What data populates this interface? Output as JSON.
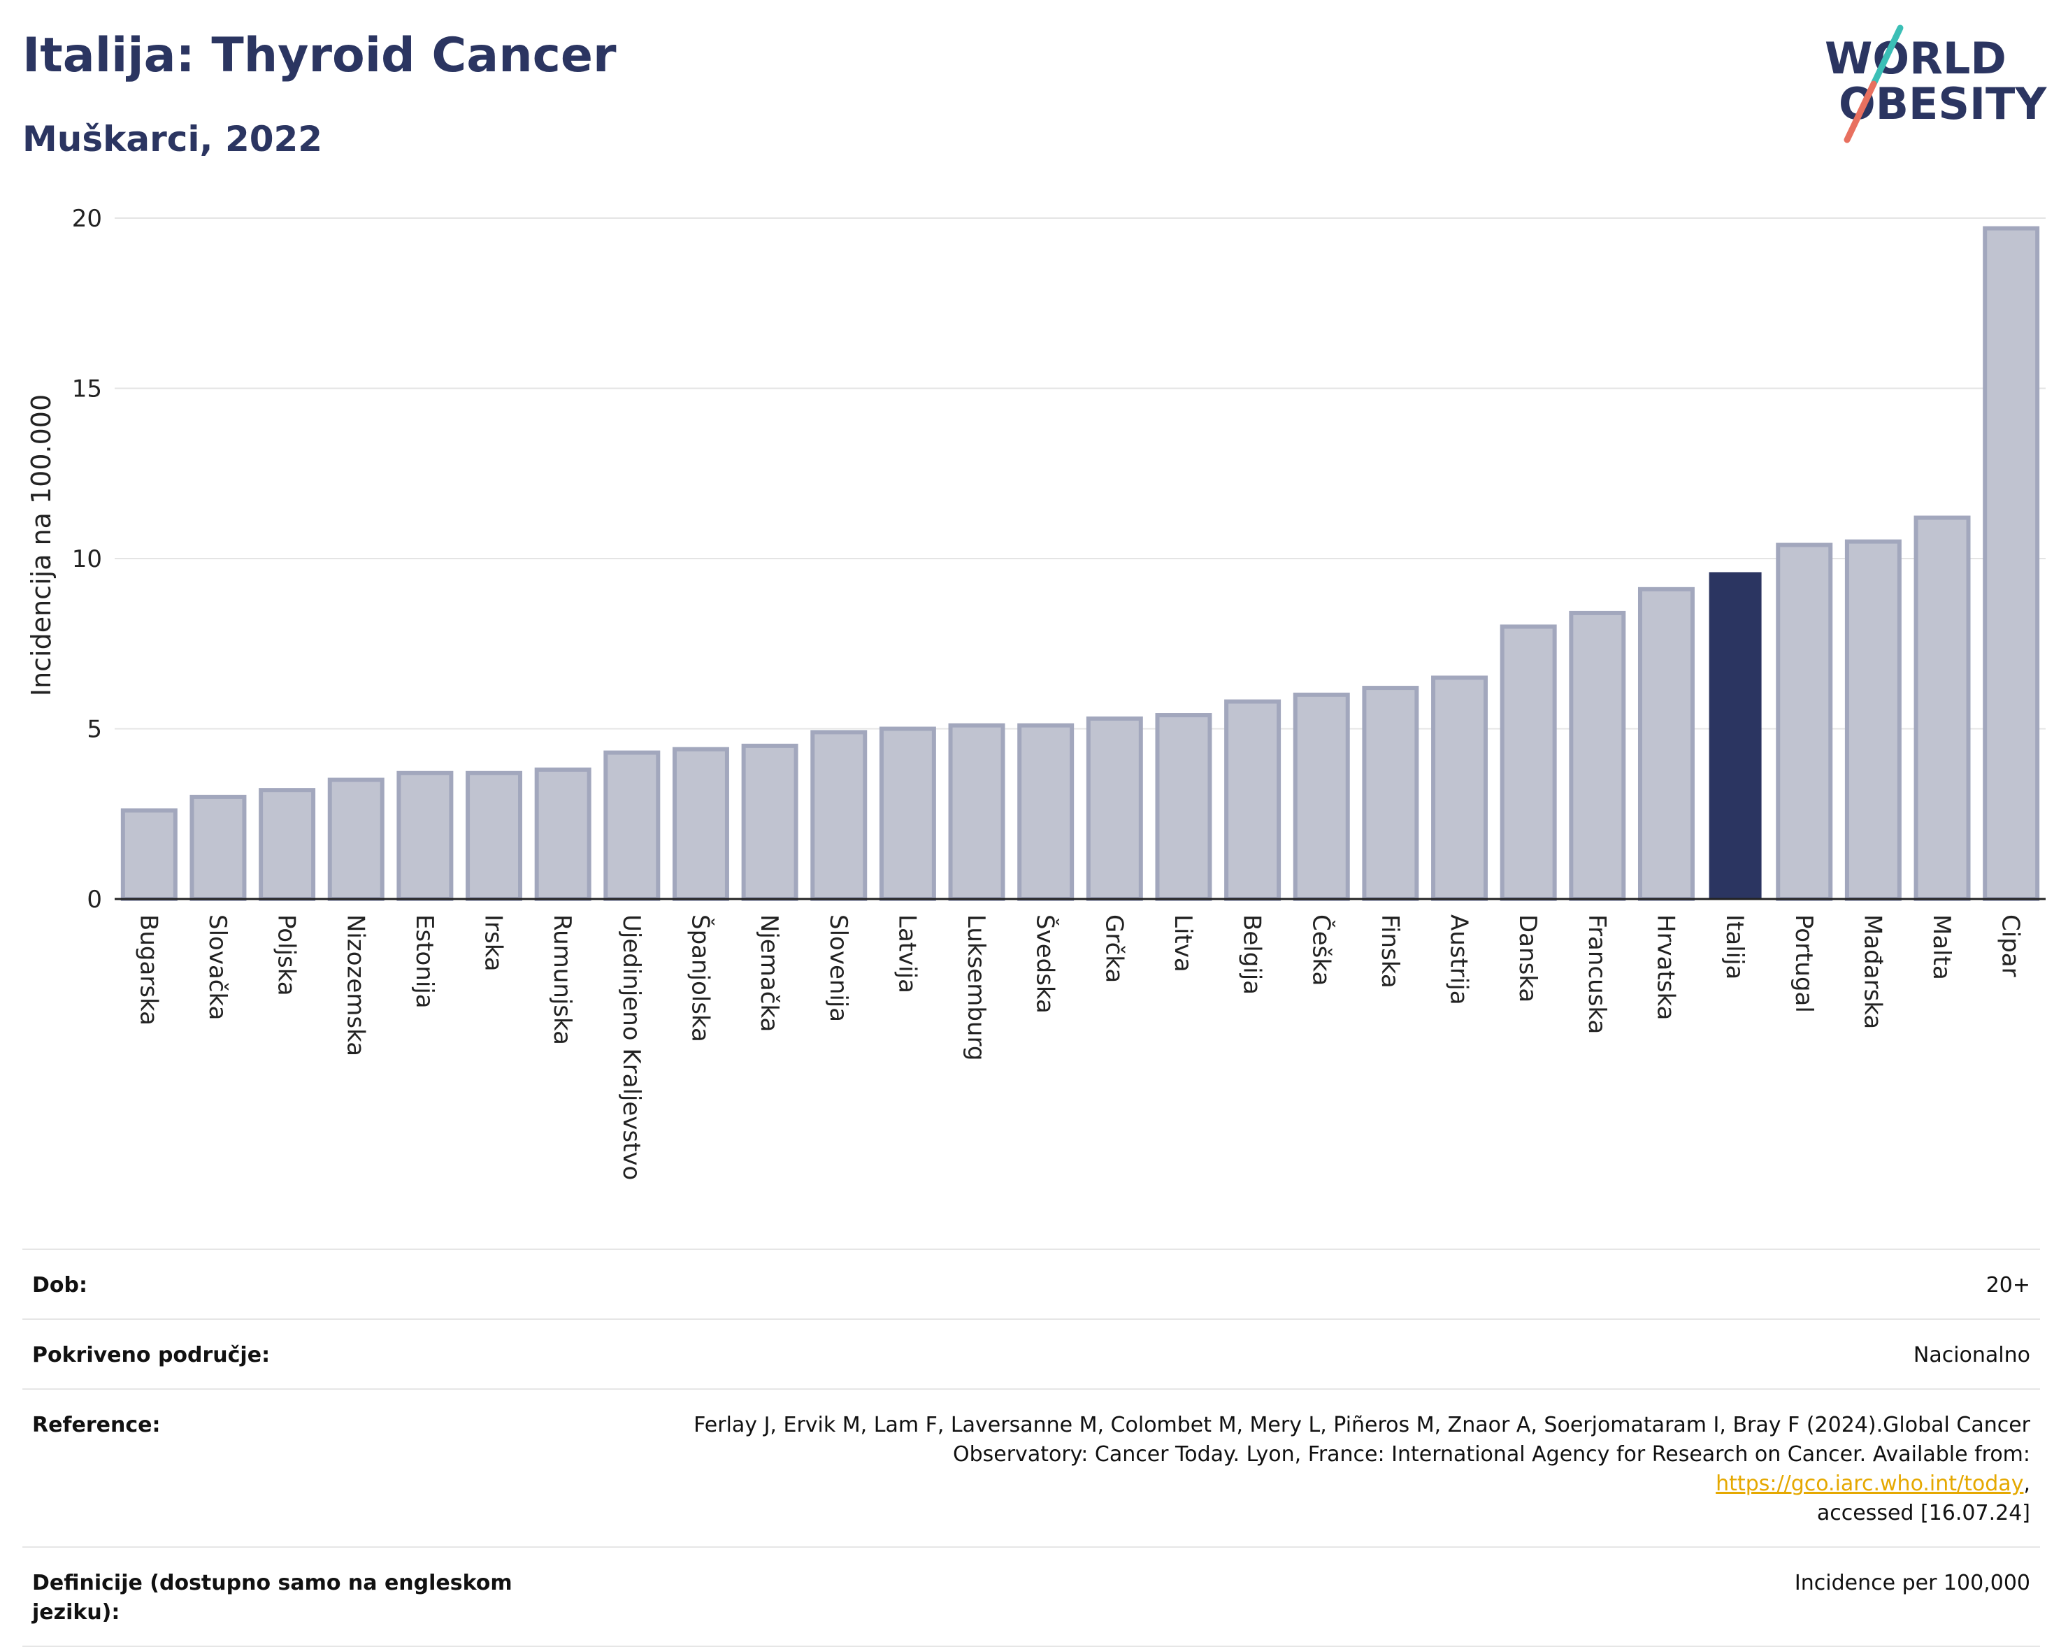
{
  "header": {
    "title": "Italija: Thyroid Cancer",
    "subtitle": "Muškarci, 2022"
  },
  "logo": {
    "line1_pre": "W",
    "line1_o": "O",
    "line1_post": "RLD",
    "line2_o": "O",
    "line2_post": "BESITY",
    "colors": {
      "text": "#2b3561",
      "slash_top": "#3bbfb6",
      "slash_bottom": "#e8705f"
    }
  },
  "chart_data": {
    "type": "bar",
    "ylabel": "Incidencija na 100.000",
    "ylim": [
      0,
      20
    ],
    "yticks": [
      "0",
      "5",
      "10",
      "15",
      "20"
    ],
    "grid": true,
    "highlight": "Italija",
    "colors": {
      "bar": "#c0c3d0",
      "bar_edge": "#a2a7bd",
      "highlight": "#2b3561"
    },
    "categories": [
      "Bugarska",
      "Slovačka",
      "Poljska",
      "Nizozemska",
      "Estonija",
      "Irska",
      "Rumunjska",
      "Ujedinjeno Kraljevstvo",
      "Španjolska",
      "Njemačka",
      "Slovenija",
      "Latvija",
      "Luksemburg",
      "Švedska",
      "Grčka",
      "Litva",
      "Belgija",
      "Češka",
      "Finska",
      "Austrija",
      "Danska",
      "Francuska",
      "Hrvatska",
      "Italija",
      "Portugal",
      "Mađarska",
      "Malta",
      "Cipar"
    ],
    "values": [
      2.6,
      3.0,
      3.2,
      3.5,
      3.7,
      3.7,
      3.8,
      4.3,
      4.4,
      4.5,
      4.9,
      5.0,
      5.1,
      5.1,
      5.3,
      5.4,
      5.8,
      6.0,
      6.2,
      6.5,
      8.0,
      8.4,
      9.1,
      9.6,
      10.4,
      10.5,
      11.2,
      19.7
    ]
  },
  "meta": {
    "rows": [
      {
        "key": "Dob:",
        "value": "20+"
      },
      {
        "key": "Pokriveno područje:",
        "value": "Nacionalno"
      },
      {
        "key": "Reference:",
        "value_line1": "Ferlay J, Ervik M, Lam F, Laversanne M, Colombet M, Mery L, Piñeros M, Znaor A, Soerjomataram I, Bray F (2024).Global Cancer",
        "value_line2": "Observatory: Cancer Today. Lyon, France: International Agency for Research on Cancer. Available from: ",
        "link": "https://gco.iarc.who.int/today",
        "value_line2_end": ",",
        "value_line3": "accessed [16.07.24]"
      },
      {
        "key": "Definicije (dostupno samo na engleskom jeziku):",
        "value": "Incidence per 100,000"
      }
    ]
  }
}
